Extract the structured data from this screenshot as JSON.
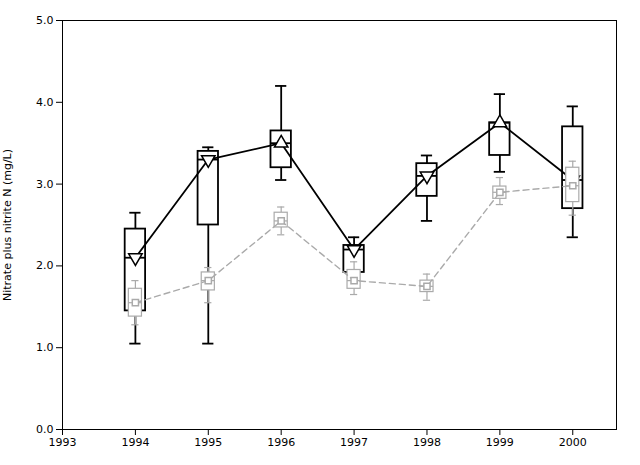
{
  "chart_data": {
    "type": "box",
    "ylabel": "Nitrate plus nitrite N (mg/L)",
    "x": [
      1994,
      1995,
      1996,
      1997,
      1998,
      1999,
      2000
    ],
    "series": [
      {
        "color": "#000000",
        "line_style": "solid",
        "markers": [
          "triangle-down",
          "triangle-down",
          "triangle-up",
          "triangle-down",
          "triangle-down",
          "triangle-up",
          "triangle-down"
        ],
        "values": [
          2.1,
          3.3,
          3.5,
          2.2,
          3.1,
          3.75,
          3.05
        ],
        "q1": [
          1.45,
          2.5,
          3.2,
          1.92,
          2.85,
          3.35,
          2.7
        ],
        "q3": [
          2.45,
          3.4,
          3.65,
          2.25,
          3.25,
          3.75,
          3.7
        ],
        "whisker_low": [
          1.05,
          1.05,
          3.05,
          1.75,
          2.55,
          3.15,
          2.35
        ],
        "whisker_high": [
          2.65,
          3.45,
          4.2,
          2.35,
          3.35,
          4.1,
          3.95
        ]
      },
      {
        "color": "#aaaaaa",
        "line_style": "dashed",
        "marker": "square",
        "values": [
          1.55,
          1.82,
          2.55,
          1.82,
          1.75,
          2.9,
          2.98
        ],
        "q1": [
          1.38,
          1.7,
          2.47,
          1.72,
          1.68,
          2.82,
          2.78
        ],
        "q3": [
          1.72,
          1.92,
          2.65,
          1.95,
          1.82,
          2.97,
          3.2
        ],
        "whisker_low": [
          1.28,
          1.55,
          2.38,
          1.65,
          1.58,
          2.75,
          2.62
        ],
        "whisker_high": [
          1.82,
          1.98,
          2.72,
          2.05,
          1.9,
          3.08,
          3.28
        ]
      }
    ],
    "xlim": [
      1993,
      2000.6
    ],
    "xticks": [
      1993,
      1994,
      1995,
      1996,
      1997,
      1998,
      1999,
      2000
    ],
    "ylim": [
      0,
      5
    ],
    "yticks": [
      0,
      1,
      2,
      3,
      4,
      5
    ],
    "grid": false
  }
}
